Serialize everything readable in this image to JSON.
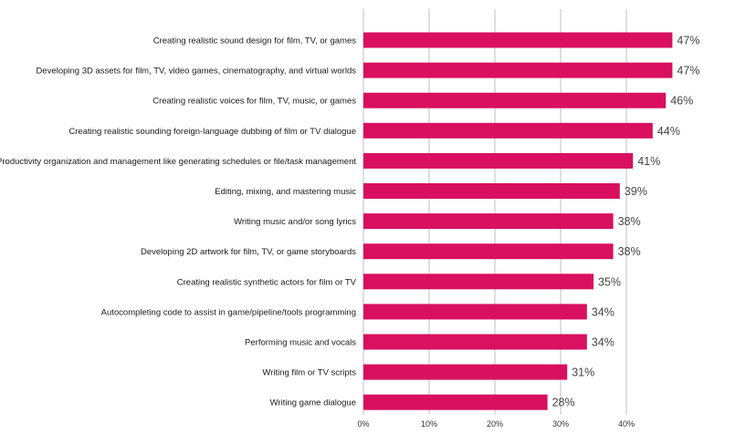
{
  "chart_data": {
    "type": "bar",
    "orientation": "horizontal",
    "categories": [
      "Creating realistic sound design for film, TV, or games",
      "Developing 3D assets for film, TV, video games, cinematography, and virtual worlds",
      "Creating realistic voices for film, TV, music, or games",
      "Creating realistic sounding foreign-language dubbing of film or TV dialogue",
      "Productivity organization and management like generating schedules or file/task management",
      "Editing, mixing, and mastering music",
      "Writing music and/or song lyrics",
      "Developing 2D artwork for film, TV, or game storyboards",
      "Creating realistic synthetic actors for film or TV",
      "Autocompleting code to assist in game/pipeline/tools programming",
      "Performing music and vocals",
      "Writing film or TV scripts",
      "Writing game dialogue"
    ],
    "values": [
      47,
      47,
      46,
      44,
      41,
      39,
      38,
      38,
      35,
      34,
      34,
      31,
      28
    ],
    "value_labels": [
      "47%",
      "47%",
      "46%",
      "44%",
      "41%",
      "39%",
      "38%",
      "38%",
      "35%",
      "34%",
      "34%",
      "31%",
      "28%"
    ],
    "x_ticks": [
      0,
      10,
      20,
      30,
      40
    ],
    "x_tick_labels": [
      "0%",
      "10%",
      "20%",
      "30%",
      "40%"
    ],
    "xlim": [
      0,
      50
    ],
    "grid": true,
    "bar_color": "#d8105f",
    "grid_color": "#bfbfbf"
  }
}
